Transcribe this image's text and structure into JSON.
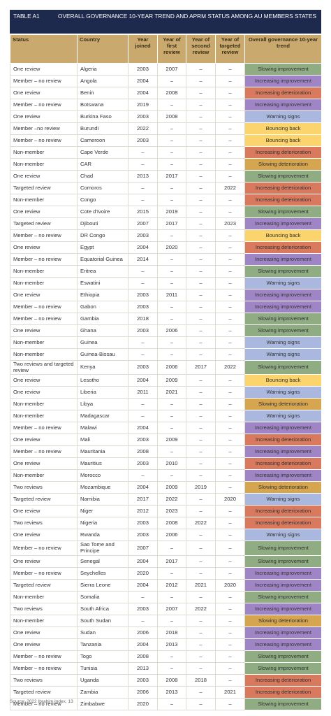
{
  "header": {
    "label": "TABLE A1",
    "title": "OVERALL GOVERNANCE 10-YEAR TREND AND APRM STATUS AMONG AU MEMBERS STATES"
  },
  "table": {
    "columns": [
      "Status",
      "Country",
      "Year joined",
      "Year of first review",
      "Year of second review",
      "Year of targeted review",
      "Overall governance 10-year trend"
    ],
    "trend_colors": {
      "Slowing improvement": "#8fac83",
      "Increasing improvement": "#9f85c6",
      "Increasing deterioration": "#d97a5f",
      "Warning signs": "#aab7de",
      "Bouncing back": "#fbd46e",
      "Slowing deterioration": "#d6a54f"
    },
    "rows": [
      [
        "One review",
        "Algeria",
        2003,
        2007,
        "–",
        "–",
        "Slowing improvement"
      ],
      [
        "Member – no review",
        "Angola",
        2004,
        "–",
        "–",
        "–",
        "Increasing improvement"
      ],
      [
        "One review",
        "Benin",
        2004,
        2008,
        "–",
        "–",
        "Increasing deterioration"
      ],
      [
        "Member – no review",
        "Botswana",
        2019,
        "–",
        "–",
        "–",
        "Increasing improvement"
      ],
      [
        "One review",
        "Burkina Faso",
        2003,
        2008,
        "–",
        "–",
        "Warning signs"
      ],
      [
        "Member –no review",
        "Burundi",
        2022,
        "–",
        "–",
        "–",
        "Bouncing back"
      ],
      [
        "Member – no review",
        "Cameroon",
        2003,
        "–",
        "–",
        "–",
        "Bouncing back"
      ],
      [
        "Non-member",
        "Cape Verde",
        "–",
        "–",
        "–",
        "–",
        "Increasing deterioration"
      ],
      [
        "Non-member",
        "CAR",
        "–",
        "–",
        "–",
        "–",
        "Slowing deterioration"
      ],
      [
        "One review",
        "Chad",
        2013,
        2017,
        "–",
        "–",
        "Slowing improvement"
      ],
      [
        "Targeted review",
        "Comoros",
        "–",
        "–",
        "–",
        2022,
        "Increasing deterioration"
      ],
      [
        "Non-member",
        "Congo",
        "–",
        "–",
        "–",
        "–",
        "Increasing deterioration"
      ],
      [
        "One review",
        "Cote d'Ivoire",
        2015,
        2019,
        "–",
        "–",
        "Slowing improvement"
      ],
      [
        "Targeted review",
        "Djibouti",
        2007,
        2017,
        "–",
        2023,
        "Increasing improvement"
      ],
      [
        "Member – no review",
        "DR Congo",
        2003,
        "–",
        "–",
        "–",
        "Bouncing back"
      ],
      [
        "One review",
        "Egypt",
        2004,
        2020,
        "–",
        "–",
        "Increasing deterioration"
      ],
      [
        "Member – no review",
        "Equatorial Guinea",
        2014,
        "–",
        "–",
        "–",
        "Increasing improvement"
      ],
      [
        "Non-member",
        "Eritrea",
        "–",
        "–",
        "–",
        "–",
        "Slowing improvement"
      ],
      [
        "Non-member",
        "Eswatini",
        "–",
        "–",
        "–",
        "–",
        "Warning signs"
      ],
      [
        "One review",
        "Ethiopia",
        2003,
        2011,
        "–",
        "–",
        "Increasing improvement"
      ],
      [
        "Member – no review",
        "Gabon",
        2003,
        "–",
        "–",
        "–",
        "Increasing improvement"
      ],
      [
        "Member – no review",
        "Gambia",
        2018,
        "–",
        "–",
        "–",
        "Slowing improvement"
      ],
      [
        "One review",
        "Ghana",
        2003,
        2006,
        "–",
        "–",
        "Slowing improvement"
      ],
      [
        "Non-member",
        "Guinea",
        "–",
        "–",
        "–",
        "–",
        "Warning signs"
      ],
      [
        "Non-member",
        "Guinea-Bissau",
        "–",
        "–",
        "–",
        "–",
        "Warning signs"
      ],
      [
        "Two reviews and targeted review",
        "Kenya",
        2003,
        2006,
        2017,
        2022,
        "Slowing improvement"
      ],
      [
        "One review",
        "Lesotho",
        2004,
        2009,
        "–",
        "–",
        "Bouncing back"
      ],
      [
        "One review",
        "Liberia",
        2011,
        2021,
        "–",
        "–",
        "Warning signs"
      ],
      [
        "Non-member",
        "Libya",
        "–",
        "–",
        "–",
        "–",
        "Slowing deterioration"
      ],
      [
        "Non-member",
        "Madagascar",
        "–",
        "–",
        "–",
        "–",
        "Warning signs"
      ],
      [
        "Member – no review",
        "Malawi",
        2004,
        "–",
        "–",
        "–",
        "Increasing improvement"
      ],
      [
        "One review",
        "Mali",
        2003,
        2009,
        "–",
        "–",
        "Increasing deterioration"
      ],
      [
        "Member – no review",
        "Mauritania",
        2008,
        "–",
        "–",
        "–",
        "Increasing improvement"
      ],
      [
        "One review",
        "Mauritius",
        2003,
        2010,
        "–",
        "–",
        "Increasing deterioration"
      ],
      [
        "Non-member",
        "Morocco",
        "–",
        "–",
        "–",
        "–",
        "Increasing improvement"
      ],
      [
        "Two reviews",
        "Mozambique",
        2004,
        2009,
        2019,
        "–",
        "Slowing deterioration"
      ],
      [
        "Targeted review",
        "Namibia",
        2017,
        2022,
        "–",
        2020,
        "Warning signs"
      ],
      [
        "One review",
        "Niger",
        2012,
        2023,
        "–",
        "–",
        "Increasing deterioration"
      ],
      [
        "Two reviews",
        "Nigeria",
        2003,
        2008,
        2022,
        "–",
        "Increasing deterioration"
      ],
      [
        "One review",
        "Rwanda",
        2003,
        2006,
        "–",
        "–",
        "Warning signs"
      ],
      [
        "Member – no review",
        "Sao Tome and Principe",
        2007,
        "–",
        "–",
        "–",
        "Slowing improvement"
      ],
      [
        "One review",
        "Senegal",
        2004,
        2017,
        "–",
        "–",
        "Slowing improvement"
      ],
      [
        "Member – no review",
        "Seychelles",
        2020,
        "–",
        "–",
        "–",
        "Increasing improvement"
      ],
      [
        "Targeted review",
        "Sierra Leone",
        2004,
        2012,
        2021,
        2020,
        "Increasing improvement"
      ],
      [
        "Non-member",
        "Somalia",
        "–",
        "–",
        "–",
        "–",
        "Slowing improvement"
      ],
      [
        "Two reviews",
        "South Africa",
        2003,
        2007,
        2022,
        "–",
        "Increasing improvement"
      ],
      [
        "Non-member",
        "South Sudan",
        "–",
        "–",
        "–",
        "–",
        "Slowing deterioration"
      ],
      [
        "One review",
        "Sudan",
        2006,
        2018,
        "–",
        "–",
        "Increasing improvement"
      ],
      [
        "One review",
        "Tanzania",
        2004,
        2013,
        "–",
        "–",
        "Increasing improvement"
      ],
      [
        "Member – no review",
        "Togo",
        2008,
        "–",
        "–",
        "–",
        "Slowing improvement"
      ],
      [
        "Member – no review",
        "Tunisia",
        2013,
        "–",
        "–",
        "–",
        "Slowing improvement"
      ],
      [
        "Two reviews",
        "Uganda",
        2003,
        2008,
        2018,
        "–",
        "Increasing deterioration"
      ],
      [
        "Targeted review",
        "Zambia",
        2006,
        2013,
        "–",
        2021,
        "Increasing deterioration"
      ],
      [
        "Member – no review",
        "Zimbabwe",
        2020,
        "–",
        "–",
        "–",
        "Slowing improvement"
      ]
    ]
  },
  "footer": {
    "source": "Source: 2022 Ibrahim Index, 13"
  }
}
